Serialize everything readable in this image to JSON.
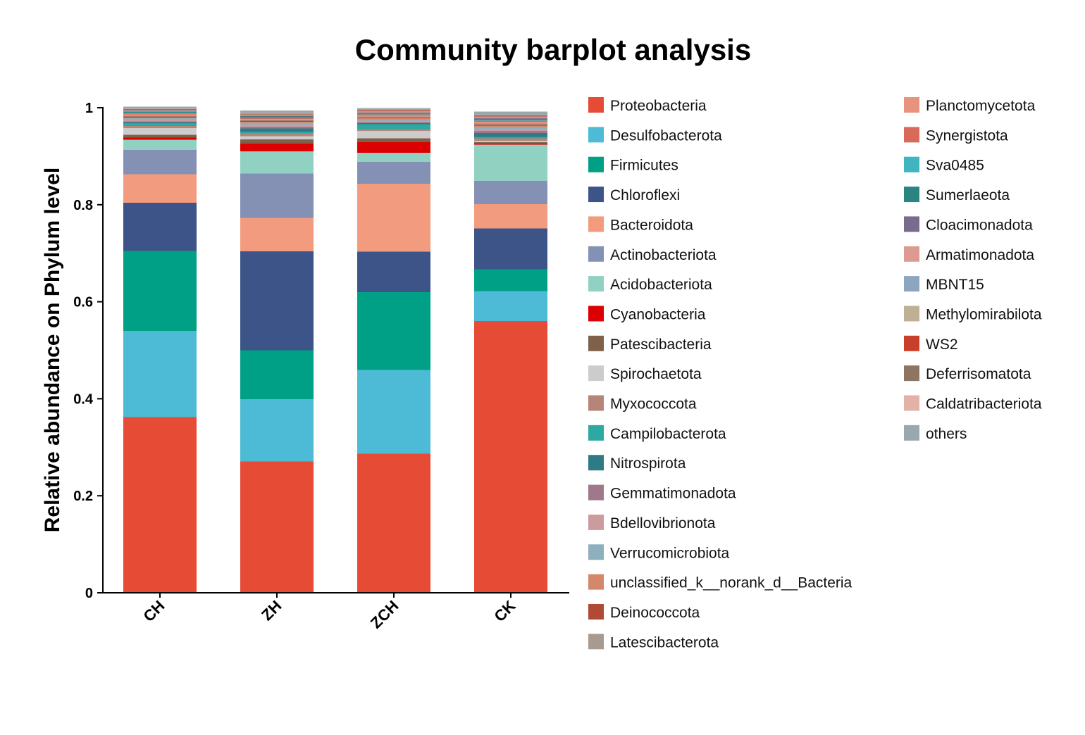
{
  "chart_data": {
    "type": "bar",
    "stacked": true,
    "title": "Community barplot analysis",
    "xlabel": "",
    "ylabel": "Relative abundance on Phylum level",
    "ylim": [
      0,
      1
    ],
    "yticks": [
      {
        "value": 0,
        "label": "0"
      },
      {
        "value": 0.2,
        "label": "0.2"
      },
      {
        "value": 0.4,
        "label": "0.4"
      },
      {
        "value": 0.6,
        "label": "0.6"
      },
      {
        "value": 0.8,
        "label": "0.8"
      },
      {
        "value": 1,
        "label": "1"
      }
    ],
    "categories": [
      "CH",
      "ZH",
      "ZCH",
      "CK"
    ],
    "legend_position": "right",
    "series": [
      {
        "name": "Proteobacteria",
        "color": "#E64B35",
        "values": [
          0.362,
          0.271,
          0.287,
          0.56
        ]
      },
      {
        "name": "Desulfobacterota",
        "color": "#4DBBD5",
        "values": [
          0.178,
          0.128,
          0.172,
          0.062
        ]
      },
      {
        "name": "Firmicutes",
        "color": "#00A087",
        "values": [
          0.165,
          0.101,
          0.161,
          0.045
        ]
      },
      {
        "name": "Chloroflexi",
        "color": "#3C5488",
        "values": [
          0.099,
          0.204,
          0.083,
          0.084
        ]
      },
      {
        "name": "Bacteroidota",
        "color": "#F39B7F",
        "values": [
          0.059,
          0.069,
          0.14,
          0.05
        ]
      },
      {
        "name": "Actinobacteriota",
        "color": "#8491B4",
        "values": [
          0.05,
          0.091,
          0.045,
          0.048
        ]
      },
      {
        "name": "Acidobacteriota",
        "color": "#91D1C2",
        "values": [
          0.021,
          0.046,
          0.019,
          0.075
        ]
      },
      {
        "name": "Cyanobacteria",
        "color": "#DC0000",
        "values": [
          0.004,
          0.016,
          0.022,
          0.002
        ]
      },
      {
        "name": "Patescibacteria",
        "color": "#7E6148",
        "values": [
          0.006,
          0.009,
          0.008,
          0.003
        ]
      },
      {
        "name": "Spirochaetota",
        "color": "#CCCCCC",
        "values": [
          0.014,
          0.006,
          0.015,
          0.003
        ]
      },
      {
        "name": "Myxococcota",
        "color": "#B5857A",
        "values": [
          0.004,
          0.006,
          0.004,
          0.005
        ]
      },
      {
        "name": "Campilobacterota",
        "color": "#2CA9A0",
        "values": [
          0.006,
          0.004,
          0.01,
          0.003
        ]
      },
      {
        "name": "Nitrospirota",
        "color": "#2E7A87",
        "values": [
          0.002,
          0.006,
          0.002,
          0.008
        ]
      },
      {
        "name": "Gemmatimonadota",
        "color": "#A0788C",
        "values": [
          0.002,
          0.004,
          0.002,
          0.004
        ]
      },
      {
        "name": "Bdellovibrionota",
        "color": "#CC9B9E",
        "values": [
          0.003,
          0.004,
          0.003,
          0.004
        ]
      },
      {
        "name": "Verrucomicrobiota",
        "color": "#8DAFBE",
        "values": [
          0.003,
          0.004,
          0.003,
          0.004
        ]
      },
      {
        "name": "unclassified_k__norank_d__Bacteria",
        "color": "#D4876A",
        "values": [
          0.002,
          0.002,
          0.002,
          0.003
        ]
      },
      {
        "name": "Deinococcota",
        "color": "#B04A35",
        "values": [
          0.002,
          0.002,
          0.002,
          0.002
        ]
      },
      {
        "name": "Latescibacterota",
        "color": "#A89A8F",
        "values": [
          0.002,
          0.002,
          0.002,
          0.003
        ]
      },
      {
        "name": "Planctomycetota",
        "color": "#E8937E",
        "values": [
          0.002,
          0.002,
          0.002,
          0.003
        ]
      },
      {
        "name": "Synergistota",
        "color": "#D86A5A",
        "values": [
          0.002,
          0.001,
          0.002,
          0.002
        ]
      },
      {
        "name": "Sva0485",
        "color": "#3FB5C0",
        "values": [
          0.002,
          0.002,
          0.002,
          0.002
        ]
      },
      {
        "name": "Sumerlaeota",
        "color": "#2A8580",
        "values": [
          0.001,
          0.002,
          0.001,
          0.002
        ]
      },
      {
        "name": "Cloacimonadota",
        "color": "#776C90",
        "values": [
          0.001,
          0.001,
          0.001,
          0.001
        ]
      },
      {
        "name": "Armatimonadota",
        "color": "#DB9A92",
        "values": [
          0.001,
          0.001,
          0.001,
          0.001
        ]
      },
      {
        "name": "MBNT15",
        "color": "#8EA5C0",
        "values": [
          0.001,
          0.001,
          0.001,
          0.002
        ]
      },
      {
        "name": "Methylomirabilota",
        "color": "#BFB095",
        "values": [
          0.001,
          0.001,
          0.001,
          0.001
        ]
      },
      {
        "name": "WS2",
        "color": "#C8402C",
        "values": [
          0.001,
          0.001,
          0.001,
          0.001
        ]
      },
      {
        "name": "Deferrisomatota",
        "color": "#8C7563",
        "values": [
          0.001,
          0.001,
          0.001,
          0.001
        ]
      },
      {
        "name": "Caldatribacteriota",
        "color": "#E3B2A6",
        "values": [
          0.001,
          0.001,
          0.001,
          0.001
        ]
      },
      {
        "name": "others",
        "color": "#98A8AE",
        "values": [
          0.004,
          0.005,
          0.003,
          0.007
        ]
      }
    ]
  }
}
